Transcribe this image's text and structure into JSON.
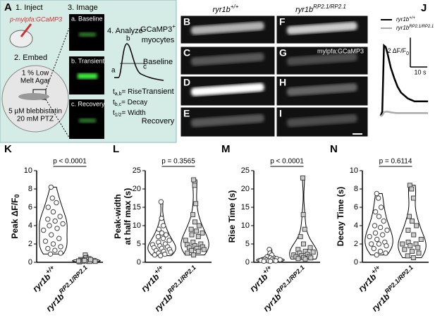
{
  "panel_a": {
    "letter": "A",
    "step1": "1. Inject",
    "plasmid": "p-mylpfa:GCaMP3",
    "step2": "2. Embed",
    "agar": [
      "1 % Low",
      "Melt Agar"
    ],
    "drugs": [
      "5 µM blebbistatin",
      "20 mM PTZ"
    ],
    "step3": "3. Image",
    "images": [
      "a. Baseline",
      "b. Transient",
      "c. Recovery"
    ],
    "step4": "4. Analyze",
    "curve_points": [
      "a",
      "b",
      "c"
    ],
    "definitions": [
      {
        "t": "t",
        "sub": "a,b",
        "text": "= Rise"
      },
      {
        "t": "t",
        "sub": "b,c",
        "text": "= Decay"
      },
      {
        "t": "t",
        "sub": "1/2",
        "text": "= Width"
      }
    ]
  },
  "panel_images": {
    "columns": [
      {
        "base": "ryr1b",
        "sup": "+/+"
      },
      {
        "base": "ryr1b",
        "sup": "RP2.1/RP2.1"
      }
    ],
    "rows": [
      {
        "text": "GCaMP3",
        "sup": "+",
        "line2": "myocytes"
      },
      {
        "text": "Baseline"
      },
      {
        "text": "Transient"
      },
      {
        "text": "Recovery"
      }
    ],
    "letters": [
      [
        "B",
        "F"
      ],
      [
        "C",
        "G"
      ],
      [
        "D",
        "H"
      ],
      [
        "E",
        "I"
      ]
    ],
    "annotation": "mylpfa:GCaMP3"
  },
  "chart_data": [
    {
      "type": "line",
      "letter": "J",
      "x": [
        0,
        1,
        2,
        3,
        4,
        5,
        6,
        8,
        10,
        12,
        14,
        16,
        18,
        20,
        22,
        24,
        26,
        28
      ],
      "series": [
        {
          "name": "ryr1b",
          "name_sup": "+/+",
          "color": "#000000",
          "values": [
            0,
            0.3,
            4.8,
            4.7,
            4.3,
            3.8,
            3.3,
            2.6,
            2.0,
            1.6,
            1.4,
            1.2,
            1.1,
            1.0,
            1.0,
            1.0,
            1.0,
            1.0
          ]
        },
        {
          "name": "ryr1b",
          "name_sup": "RP2.1/RP2.1",
          "color": "#aaaaaa",
          "values": [
            0,
            0.05,
            0.25,
            0.3,
            0.3,
            0.28,
            0.25,
            0.22,
            0.2,
            0.2,
            0.2,
            0.2,
            0.2,
            0.2,
            0.2,
            0.2,
            0.2,
            0.2
          ]
        }
      ],
      "xlim": [
        -2,
        30
      ],
      "ylim": [
        -0.5,
        5.5
      ],
      "scale_bar": {
        "y": {
          "value": 2,
          "label": "2 ΔF/F",
          "sub": "0"
        },
        "x": {
          "value": 10,
          "label": "10 s"
        }
      }
    },
    {
      "type": "violin",
      "letter": "K",
      "y_label": [
        {
          "text": "Peak ΔF/F",
          "sub": "0"
        }
      ],
      "categories": [
        "ryr1b",
        "ryr1b"
      ],
      "category_superscripts": [
        "+/+",
        "RP2.1/RP2.1"
      ],
      "annotation": "p < 0.0001",
      "ylim": [
        0,
        10
      ],
      "yticks": [
        0,
        2,
        4,
        6,
        8,
        10
      ],
      "series": [
        {
          "color": "#ffffff",
          "marker": "circle",
          "values": [
            8.2,
            7.0,
            6.5,
            6.0,
            5.5,
            5.0,
            4.7,
            4.5,
            4.2,
            4.0,
            3.7,
            3.5,
            3.0,
            2.6,
            2.3,
            2.0,
            1.7,
            1.5,
            1.3,
            1.0,
            0.9
          ]
        },
        {
          "color": "#cccccc",
          "marker": "square",
          "values": [
            0.8,
            0.5,
            0.4,
            0.3,
            0.3,
            0.2,
            0.2,
            0.1,
            0.1,
            0.1,
            0.1,
            0.05,
            0.2,
            0.3,
            0.15
          ]
        }
      ]
    },
    {
      "type": "violin",
      "letter": "L",
      "y_label": [
        {
          "text": "Peak-width"
        },
        {
          "text": "at half max (s)"
        }
      ],
      "categories": [
        "ryr1b",
        "ryr1b"
      ],
      "category_superscripts": [
        "+/+",
        "RP2.1/RP2.1"
      ],
      "annotation": "p = 0.3565",
      "ylim": [
        0,
        25
      ],
      "yticks": [
        0,
        5,
        10,
        15,
        20,
        25
      ],
      "series": [
        {
          "color": "#ffffff",
          "marker": "circle",
          "values": [
            16.5,
            12,
            10,
            9,
            8,
            7.5,
            7,
            6.5,
            6,
            5.5,
            5,
            4.8,
            4.5,
            4.2,
            4,
            3.8,
            3.5,
            3.2,
            3,
            2.8,
            2.5,
            2.2,
            2,
            1.8
          ]
        },
        {
          "color": "#cccccc",
          "marker": "square",
          "values": [
            22.5,
            21,
            16,
            13,
            11,
            10,
            9,
            8.5,
            8,
            7.5,
            7,
            6,
            5.5,
            5,
            4.8,
            4.5,
            4.2,
            4,
            3.8,
            3.5,
            3.2,
            3,
            2.5,
            2
          ]
        }
      ]
    },
    {
      "type": "violin",
      "letter": "M",
      "y_label": [
        {
          "text": "Rise Time (s)"
        }
      ],
      "categories": [
        "ryr1b",
        "ryr1b"
      ],
      "category_superscripts": [
        "+/+",
        "RP2.1/RP2.1"
      ],
      "annotation": "p < 0.0001",
      "ylim": [
        0,
        25
      ],
      "yticks": [
        0,
        5,
        10,
        15,
        20,
        25
      ],
      "series": [
        {
          "color": "#ffffff",
          "marker": "circle",
          "values": [
            3.5,
            2.5,
            2,
            1.5,
            1.2,
            1,
            0.9,
            0.8,
            0.7,
            0.6,
            0.5,
            0.5,
            0.4,
            0.4,
            0.3,
            0.3
          ]
        },
        {
          "color": "#cccccc",
          "marker": "square",
          "values": [
            23,
            13,
            9,
            7,
            5,
            4,
            3.5,
            3,
            2.8,
            2.5,
            2.2,
            2,
            1.8,
            1.6,
            1.5,
            1.3,
            1.2,
            1,
            0.9
          ]
        }
      ]
    },
    {
      "type": "violin",
      "letter": "N",
      "y_label": [
        {
          "text": "Decay Time (s)"
        }
      ],
      "categories": [
        "ryr1b",
        "ryr1b"
      ],
      "category_superscripts": [
        "+/+",
        "RP2.1/RP2.1"
      ],
      "annotation": "p = 0.6114",
      "ylim": [
        0,
        10
      ],
      "yticks": [
        0,
        2,
        4,
        6,
        8,
        10
      ],
      "series": [
        {
          "color": "#ffffff",
          "marker": "circle",
          "values": [
            7.5,
            7,
            6,
            5.5,
            5,
            4.5,
            4,
            3.8,
            3.5,
            3.2,
            3,
            2.8,
            2.5,
            2.2,
            2,
            2,
            1.8,
            1.5,
            1.2,
            1,
            0.8
          ]
        },
        {
          "color": "#cccccc",
          "marker": "square",
          "values": [
            8.4,
            8,
            7,
            5,
            4.5,
            4,
            3.5,
            3,
            2.5,
            2.2,
            2,
            2,
            1.8,
            1.6,
            1.4,
            1.2,
            1,
            0.7,
            0.5
          ]
        }
      ]
    }
  ]
}
